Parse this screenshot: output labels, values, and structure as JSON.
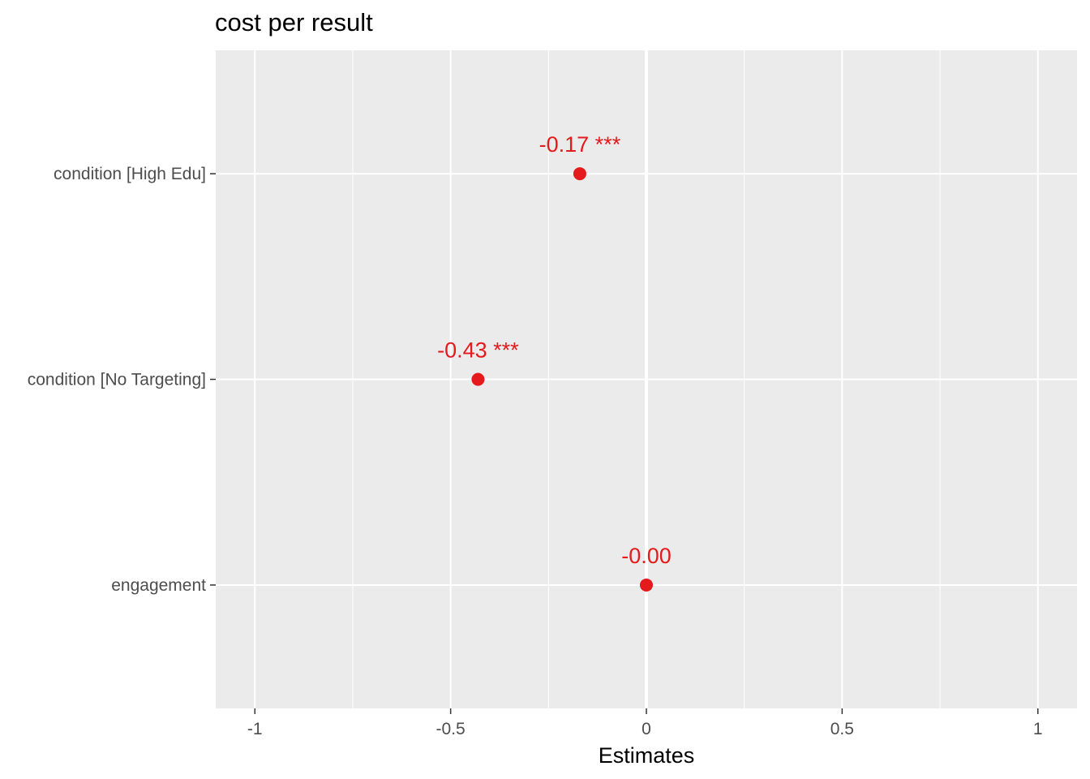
{
  "chart_data": {
    "type": "scatter",
    "title": "cost per result",
    "xlabel": "Estimates",
    "ylabel": "",
    "xlim": [
      -1.1,
      1.1
    ],
    "x_ticks": [
      -1,
      -0.5,
      0,
      0.5,
      1
    ],
    "x_tick_labels": [
      "-1",
      "-0.5",
      "0",
      "0.5",
      "1"
    ],
    "categories": [
      "condition [High Edu]",
      "condition [No Targeting]",
      "engagement"
    ],
    "values": [
      -0.17,
      -0.43,
      -0.0
    ],
    "point_labels": [
      "-0.17 ***",
      "-0.43 ***",
      "-0.00"
    ],
    "grid": true,
    "point_color": "#e41a1c",
    "panel_background": "#ebebeb"
  }
}
